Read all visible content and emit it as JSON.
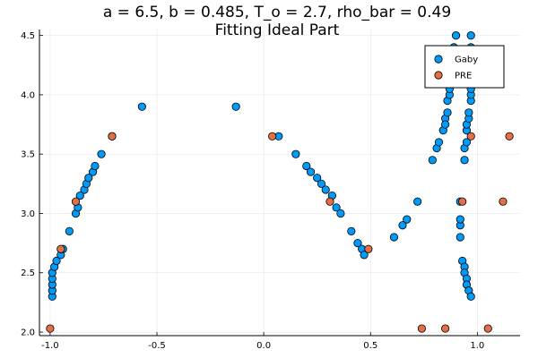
{
  "chart_data": {
    "type": "scatter",
    "title": "a = 6.5, b = 0.485, T_o = 2.7, rho_bar = 0.49",
    "subtitle": "Fitting Ideal Part",
    "xlabel": "",
    "ylabel": "",
    "xlim": [
      -1.05,
      1.2
    ],
    "ylim": [
      1.97,
      4.55
    ],
    "xticks": [
      -1.0,
      -0.5,
      0.0,
      0.5,
      1.0
    ],
    "xtick_labels": [
      "-1.0",
      "-0.5",
      "0.0",
      "0.5",
      "1.0"
    ],
    "yticks": [
      2.0,
      2.5,
      3.0,
      3.5,
      4.0,
      4.5
    ],
    "ytick_labels": [
      "2.0",
      "2.5",
      "3.0",
      "3.5",
      "4.0",
      "4.5"
    ],
    "grid": true,
    "legend_position": "top-right",
    "series": [
      {
        "name": "Gaby",
        "color": "#009AF9",
        "points": [
          [
            -0.99,
            2.3
          ],
          [
            -0.99,
            2.35
          ],
          [
            -0.99,
            2.4
          ],
          [
            -0.99,
            2.45
          ],
          [
            -0.99,
            2.5
          ],
          [
            -0.98,
            2.55
          ],
          [
            -0.97,
            2.6
          ],
          [
            -0.95,
            2.65
          ],
          [
            -0.94,
            2.7
          ],
          [
            -0.91,
            2.85
          ],
          [
            -0.88,
            3.0
          ],
          [
            -0.87,
            3.05
          ],
          [
            -0.86,
            3.15
          ],
          [
            -0.84,
            3.2
          ],
          [
            -0.83,
            3.25
          ],
          [
            -0.82,
            3.3
          ],
          [
            -0.8,
            3.35
          ],
          [
            -0.79,
            3.4
          ],
          [
            -0.76,
            3.5
          ],
          [
            -0.71,
            3.65
          ],
          [
            -0.57,
            3.9
          ],
          [
            -0.13,
            3.9
          ],
          [
            0.07,
            3.65
          ],
          [
            0.15,
            3.5
          ],
          [
            0.2,
            3.4
          ],
          [
            0.22,
            3.35
          ],
          [
            0.25,
            3.3
          ],
          [
            0.27,
            3.25
          ],
          [
            0.29,
            3.2
          ],
          [
            0.32,
            3.15
          ],
          [
            0.34,
            3.05
          ],
          [
            0.36,
            3.0
          ],
          [
            0.41,
            2.85
          ],
          [
            0.44,
            2.75
          ],
          [
            0.46,
            2.7
          ],
          [
            0.47,
            2.65
          ],
          [
            0.61,
            2.8
          ],
          [
            0.65,
            2.9
          ],
          [
            0.67,
            2.95
          ],
          [
            0.72,
            3.1
          ],
          [
            0.79,
            3.45
          ],
          [
            0.81,
            3.55
          ],
          [
            0.82,
            3.6
          ],
          [
            0.84,
            3.7
          ],
          [
            0.85,
            3.8
          ],
          [
            0.85,
            3.75
          ],
          [
            0.86,
            3.85
          ],
          [
            0.86,
            3.95
          ],
          [
            0.87,
            4.0
          ],
          [
            0.87,
            4.05
          ],
          [
            0.87,
            4.15
          ],
          [
            0.87,
            4.2
          ],
          [
            0.88,
            4.3
          ],
          [
            0.89,
            4.4
          ],
          [
            0.9,
            4.5
          ],
          [
            0.93,
            2.6
          ],
          [
            0.94,
            2.55
          ],
          [
            0.94,
            2.5
          ],
          [
            0.95,
            2.45
          ],
          [
            0.95,
            2.4
          ],
          [
            0.96,
            2.35
          ],
          [
            0.97,
            2.3
          ],
          [
            0.92,
            2.8
          ],
          [
            0.92,
            2.9
          ],
          [
            0.92,
            2.95
          ],
          [
            0.92,
            3.1
          ],
          [
            0.94,
            3.45
          ],
          [
            0.94,
            3.55
          ],
          [
            0.95,
            3.6
          ],
          [
            0.95,
            3.7
          ],
          [
            0.95,
            3.75
          ],
          [
            0.96,
            3.8
          ],
          [
            0.96,
            3.85
          ],
          [
            0.97,
            3.95
          ],
          [
            0.97,
            4.0
          ],
          [
            0.97,
            4.05
          ],
          [
            0.97,
            4.15
          ],
          [
            0.97,
            4.2
          ],
          [
            0.97,
            4.3
          ],
          [
            0.97,
            4.4
          ],
          [
            0.97,
            4.5
          ]
        ]
      },
      {
        "name": "PRE",
        "color": "#E26F46",
        "points": [
          [
            -1.0,
            2.03
          ],
          [
            -0.95,
            2.7
          ],
          [
            -0.88,
            3.1
          ],
          [
            -0.71,
            3.65
          ],
          [
            0.04,
            3.65
          ],
          [
            0.31,
            3.1
          ],
          [
            0.49,
            2.7
          ],
          [
            0.74,
            2.03
          ],
          [
            0.85,
            2.03
          ],
          [
            0.93,
            3.1
          ],
          [
            0.97,
            3.65
          ],
          [
            1.05,
            2.03
          ],
          [
            1.12,
            3.1
          ],
          [
            1.15,
            3.65
          ]
        ]
      }
    ]
  }
}
